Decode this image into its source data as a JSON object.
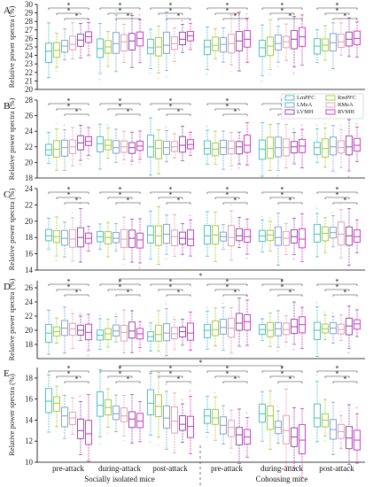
{
  "figure": {
    "xgroups": [
      "Socially isolated mice",
      "Cohousing mice"
    ],
    "conditions": [
      "pre-attack",
      "during-attack",
      "post-attack",
      "pre-attack",
      "during-attack",
      "post-attack"
    ],
    "regions": [
      {
        "name": "LmPFC",
        "color": "#4fc3c0"
      },
      {
        "name": "RmPFC",
        "color": "#a6cf3c"
      },
      {
        "name": "LMeA",
        "color": "#7fa6d8"
      },
      {
        "name": "RMeA",
        "color": "#e4a2b0"
      },
      {
        "name": "LVMH",
        "color": "#9a4fb4"
      },
      {
        "name": "RVMH",
        "color": "#d23fc6"
      }
    ],
    "significance_mark": "*"
  },
  "chart_data": [
    {
      "type": "box",
      "panel": "A",
      "ylabel": "Relative power spectra (%)",
      "ylim": [
        20,
        30
      ],
      "yticks": [
        20,
        21,
        22,
        23,
        24,
        25,
        26,
        27,
        28,
        29,
        30
      ],
      "medians": [
        [
          24.5,
          24.6,
          25.1,
          25.3,
          25.8,
          26.2
        ],
        [
          24.8,
          25.0,
          25.4,
          25.6,
          25.7,
          26.0
        ],
        [
          24.9,
          25.0,
          25.2,
          25.4,
          25.9,
          26.3
        ],
        [
          25.0,
          25.2,
          25.3,
          25.4,
          25.7,
          25.9
        ],
        [
          24.9,
          25.1,
          25.4,
          25.6,
          25.9,
          26.2
        ],
        [
          25.1,
          25.2,
          25.5,
          25.6,
          25.9,
          26.0
        ]
      ]
    },
    {
      "type": "box",
      "panel": "B",
      "ylabel": "Relative power spectra (%)",
      "ylim": [
        18,
        28
      ],
      "yticks": [
        18,
        20,
        22,
        24,
        26,
        28
      ],
      "medians": [
        [
          21.6,
          21.7,
          21.9,
          22.0,
          22.5,
          22.7
        ],
        [
          22.4,
          22.2,
          21.9,
          22.0,
          21.9,
          22.1
        ],
        [
          22.0,
          21.8,
          21.9,
          22.0,
          22.2,
          22.3
        ],
        [
          21.8,
          21.7,
          21.9,
          21.8,
          22.0,
          22.2
        ],
        [
          21.7,
          21.8,
          21.9,
          21.9,
          22.0,
          22.1
        ],
        [
          21.9,
          21.8,
          22.0,
          21.9,
          22.0,
          22.2
        ]
      ]
    },
    {
      "type": "box",
      "panel": "C",
      "ylabel": "Relative power spectra (%)",
      "ylim": [
        14,
        24
      ],
      "yticks": [
        14,
        16,
        18,
        20,
        22,
        24
      ],
      "medians": [
        [
          18.2,
          18.1,
          17.9,
          17.8,
          18.0,
          17.9
        ],
        [
          18.1,
          18.0,
          17.9,
          17.8,
          17.9,
          17.7
        ],
        [
          18.3,
          18.2,
          18.4,
          18.1,
          17.9,
          17.8
        ],
        [
          18.2,
          18.3,
          18.1,
          18.0,
          18.2,
          18.1
        ],
        [
          18.2,
          18.3,
          18.0,
          17.9,
          18.1,
          17.8
        ],
        [
          18.4,
          18.5,
          18.6,
          18.4,
          18.2,
          18.1
        ]
      ]
    },
    {
      "type": "box",
      "panel": "D",
      "ylabel": "Relative power spectra (%)",
      "ylim": [
        16,
        27
      ],
      "yticks": [
        18,
        20,
        22,
        24,
        26
      ],
      "medians": [
        [
          19.6,
          19.8,
          20.3,
          20.2,
          20.0,
          19.7
        ],
        [
          19.3,
          19.5,
          19.9,
          19.7,
          19.9,
          19.5
        ],
        [
          19.1,
          19.4,
          19.6,
          19.5,
          19.8,
          19.6
        ],
        [
          20.0,
          20.1,
          20.4,
          20.3,
          21.0,
          21.2
        ],
        [
          20.1,
          20.0,
          20.2,
          20.1,
          20.5,
          20.8
        ],
        [
          20.0,
          20.2,
          20.3,
          20.1,
          20.6,
          20.9
        ]
      ]
    },
    {
      "type": "box",
      "panel": "E",
      "ylabel": "Relative power spectra (%)",
      "ylim": [
        10,
        19
      ],
      "yticks": [
        10,
        12,
        14,
        16,
        18
      ],
      "medians": [
        [
          15.8,
          15.6,
          14.4,
          14.2,
          13.0,
          12.7
        ],
        [
          15.4,
          15.2,
          14.6,
          14.4,
          14.1,
          13.9
        ],
        [
          15.6,
          15.3,
          14.2,
          13.9,
          13.6,
          13.4
        ],
        [
          14.4,
          14.2,
          13.5,
          13.3,
          12.6,
          12.4
        ],
        [
          14.6,
          14.4,
          13.3,
          13.0,
          12.4,
          12.1
        ],
        [
          14.2,
          14.0,
          13.1,
          12.9,
          12.3,
          12.1
        ]
      ]
    }
  ]
}
